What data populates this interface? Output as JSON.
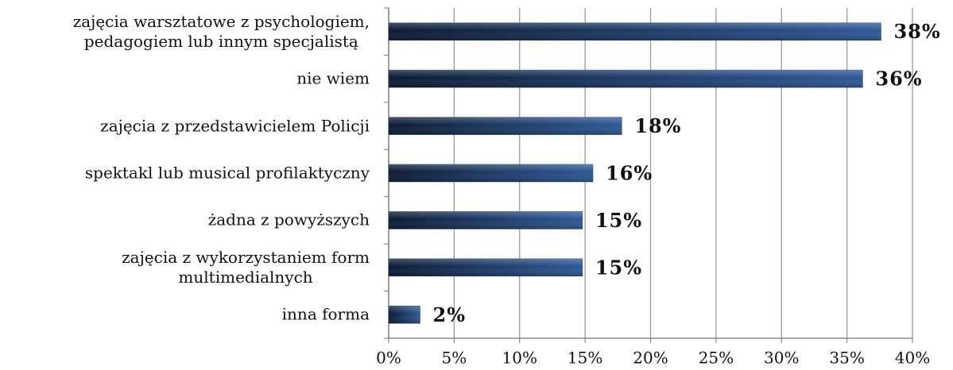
{
  "chart_data": {
    "type": "barh",
    "categories": [
      "zajęcia warsztatowe z psychologiem,\npedagogiem lub innym specjalistą",
      "nie wiem",
      "zajęcia z przedstawicielem Policji",
      "spektakl lub musical profilaktyczny",
      "żadna z powyższych",
      "zajęcia z wykorzystaniem form\nmultimedialnych",
      "inna forma"
    ],
    "values": [
      37.6,
      36.2,
      17.8,
      15.6,
      14.8,
      14.8,
      2.4
    ],
    "value_labels": [
      "38%",
      "36%",
      "18%",
      "16%",
      "15%",
      "15%",
      "2%"
    ],
    "color": "#1f3f73",
    "xlim": [
      0,
      40
    ],
    "xticks": [
      {
        "value": 0,
        "label": "0%"
      },
      {
        "value": 5,
        "label": "5%"
      },
      {
        "value": 10,
        "label": "10%"
      },
      {
        "value": 15,
        "label": "15%"
      },
      {
        "value": 20,
        "label": "20%"
      },
      {
        "value": 25,
        "label": "25%"
      },
      {
        "value": 30,
        "label": "30%"
      },
      {
        "value": 35,
        "label": "35%"
      },
      {
        "value": 40,
        "label": "40%"
      }
    ],
    "grid": true
  }
}
